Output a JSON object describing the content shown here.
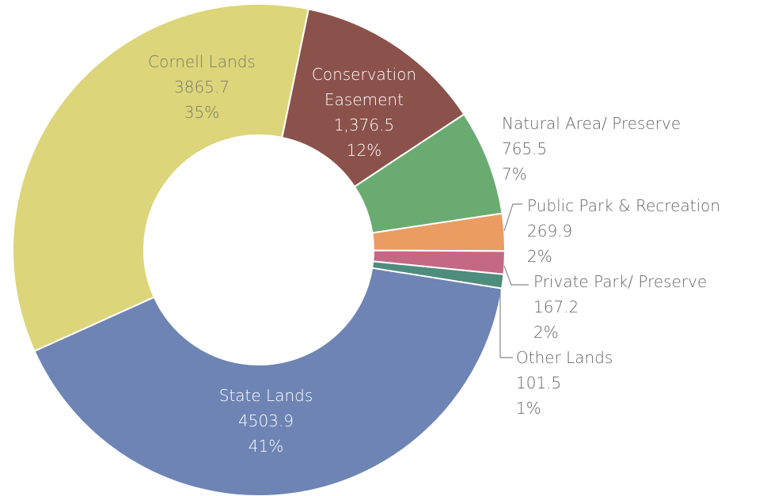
{
  "chart_data": {
    "type": "donut",
    "categories": [
      "State Lands",
      "Cornell Lands",
      "Conservation Easement",
      "Natural Area/ Preserve",
      "Public Park & Recreation",
      "Private Park/ Preserve",
      "Other Lands"
    ],
    "values": [
      4503.9,
      3865.7,
      1376.5,
      765.5,
      269.9,
      167.2,
      101.5
    ],
    "value_labels": [
      "4503.9",
      "3865.7",
      "1,376.5",
      "765.5",
      "269.9",
      "167.2",
      "101.5"
    ],
    "percent_labels": [
      "41%",
      "35%",
      "12%",
      "7%",
      "2%",
      "2%",
      "1%"
    ],
    "colors": [
      "#6d84b4",
      "#dcd57a",
      "#8b524b",
      "#6aab72",
      "#eb9c62",
      "#c56886",
      "#4e8c7e"
    ]
  }
}
